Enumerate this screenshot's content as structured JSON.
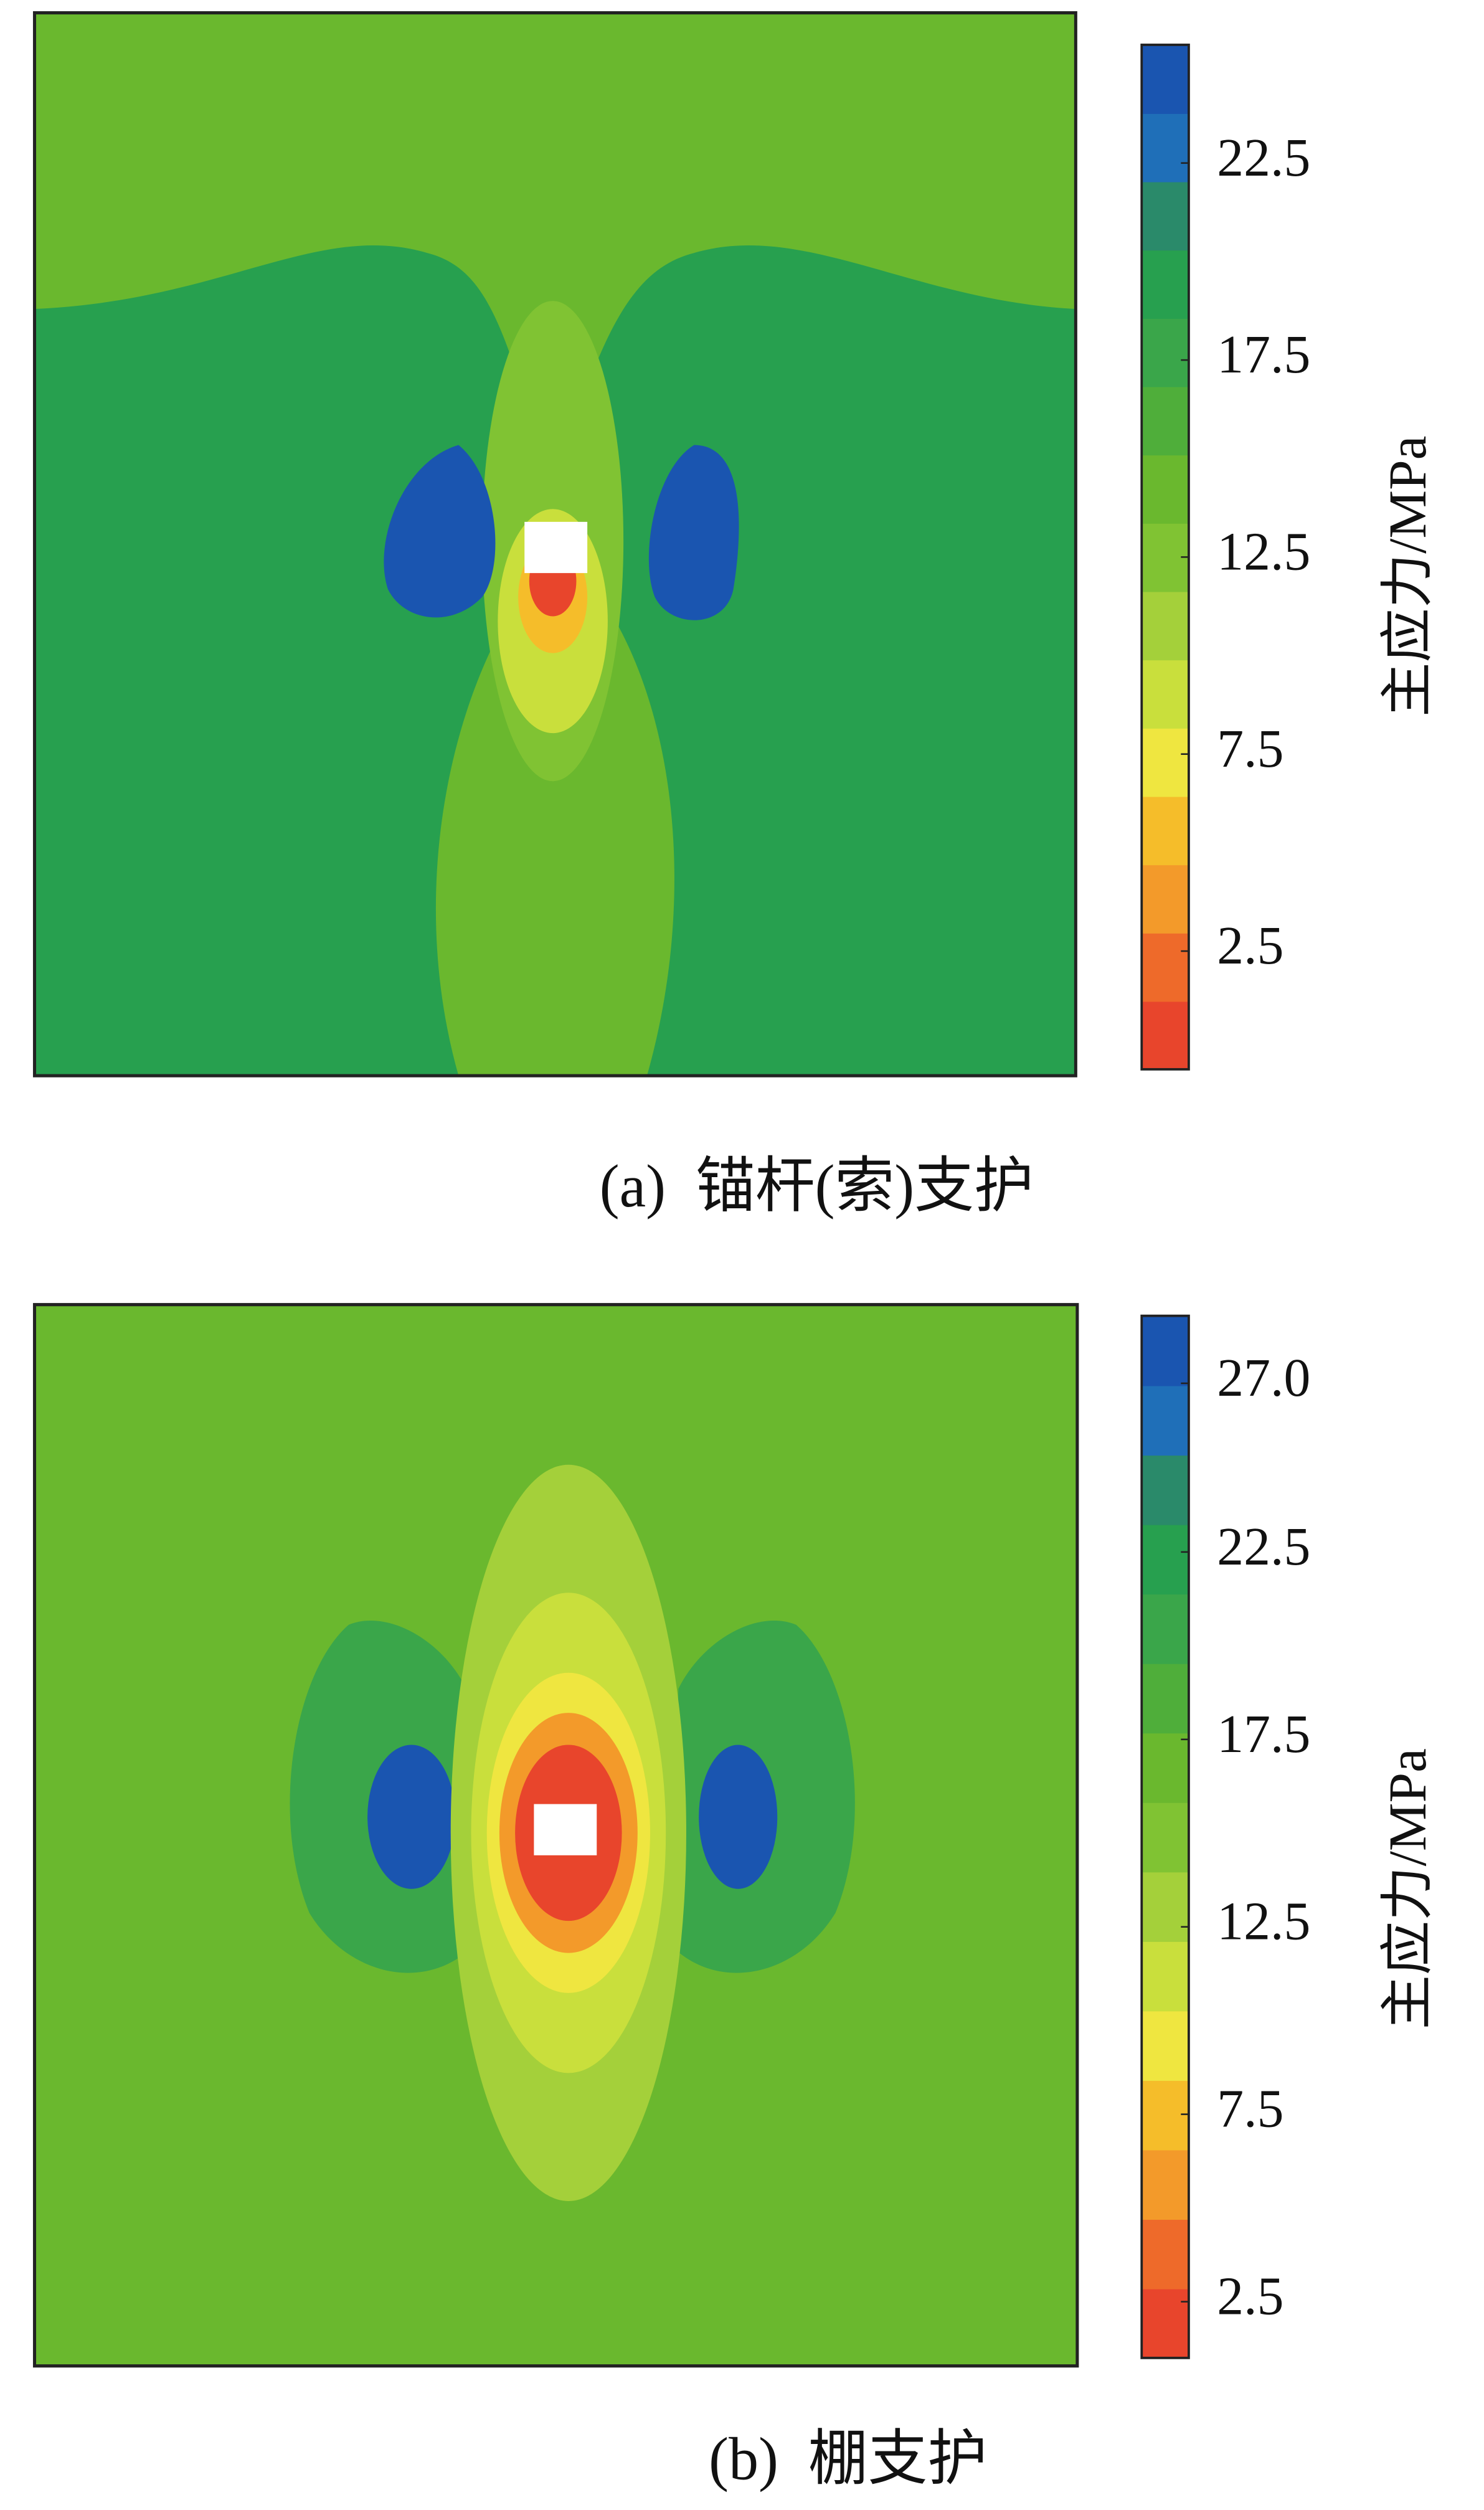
{
  "chart_data": [
    {
      "type": "contour",
      "caption": "(a)  锚杆(索)支护",
      "colorbar_label": "主应力/MPa",
      "clim": [
        -0.5,
        25.5
      ],
      "cticks": [
        2.5,
        7.5,
        12.5,
        17.5,
        22.5
      ],
      "colors": [
        "#e8452c",
        "#ee6a2a",
        "#f39a2a",
        "#f5bd2a",
        "#efe640",
        "#c9df3c",
        "#a4d03a",
        "#80c333",
        "#6ab82e",
        "#4fae3a",
        "#3aa64a",
        "#27a04f",
        "#2a8a6a",
        "#1f6fb8",
        "#1a55b0"
      ]
    },
    {
      "type": "contour",
      "caption": "(b)  棚支护",
      "colorbar_label": "主应力/MPa",
      "clim": [
        1,
        28.8
      ],
      "cticks": [
        2.5,
        7.5,
        12.5,
        17.5,
        22.5,
        {
          "value": 27,
          "label": "27.0"
        }
      ],
      "colors": [
        "#e8452c",
        "#ee6a2a",
        "#f39a2a",
        "#f5bd2a",
        "#efe640",
        "#c9df3c",
        "#a4d03a",
        "#80c333",
        "#6ab82e",
        "#4fae3a",
        "#3aa64a",
        "#27a04f",
        "#2a8a6a",
        "#1f6fb8",
        "#1a55b0"
      ]
    }
  ]
}
